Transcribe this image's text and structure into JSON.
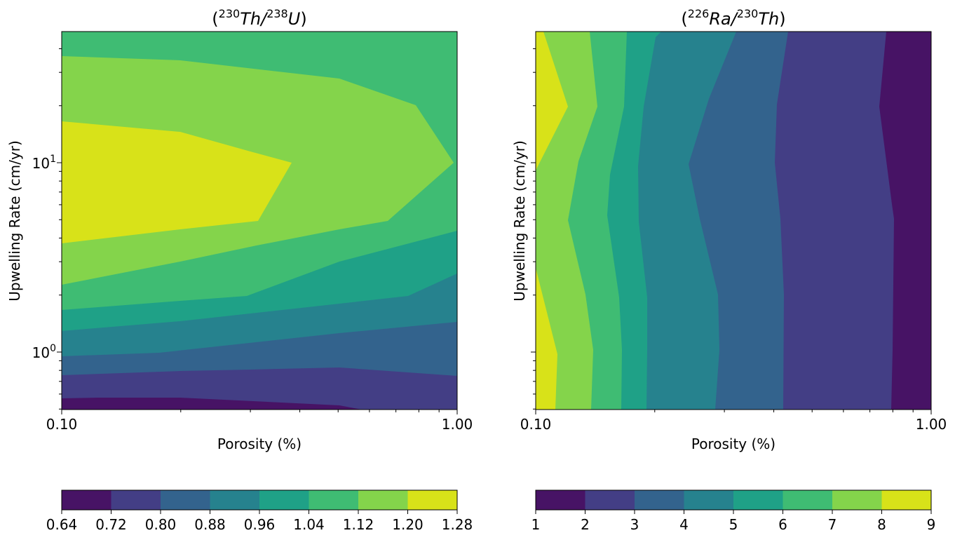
{
  "chart_data": [
    {
      "type": "contour",
      "title": {
        "open": "(",
        "iso1": "230",
        "el1": "Th",
        "slash": "/",
        "iso2": "238",
        "el2": "U",
        "close": ")"
      },
      "xlabel": "Porosity (%)",
      "ylabel": "Upwelling Rate (cm/yr)",
      "xscale": "log",
      "yscale": "log",
      "xlim": [
        0.1,
        1.0
      ],
      "ylim": [
        0.5,
        50
      ],
      "xticks": [
        "0.10",
        "1.00"
      ],
      "yticks": [
        {
          "base": "10",
          "exp": "0"
        },
        {
          "base": "10",
          "exp": "1"
        }
      ],
      "levels": [
        "0.64",
        "0.72",
        "0.80",
        "0.88",
        "0.96",
        "1.04",
        "1.12",
        "1.20",
        "1.28"
      ],
      "colorbar": "bottom",
      "pattern": "maximum 1.20-1.28 at low porosity and ~5-15 cm/yr upwelling; values fall to 0.64-0.72 at lowest upwelling rates"
    },
    {
      "type": "contour",
      "title": {
        "open": "(",
        "iso1": "226",
        "el1": "Ra",
        "slash": "/",
        "iso2": "230",
        "el2": "Th",
        "close": ")"
      },
      "xlabel": "Porosity (%)",
      "ylabel": "Upwelling Rate (cm/yr)",
      "xscale": "log",
      "yscale": "log",
      "xlim": [
        0.1,
        1.0
      ],
      "ylim": [
        0.5,
        50
      ],
      "xticks": [
        "0.10",
        "1.00"
      ],
      "yticks": [],
      "levels": [
        "1",
        "2",
        "3",
        "4",
        "5",
        "6",
        "7",
        "8",
        "9"
      ],
      "colorbar": "bottom",
      "pattern": "values decrease with porosity from 8-9 at 0.1% to 1-2 near 1%, nearly independent of upwelling rate"
    }
  ],
  "colors": [
    "#471365",
    "#433e85",
    "#33638d",
    "#26828e",
    "#1fa187",
    "#3fbc73",
    "#84d44b",
    "#d8e219"
  ]
}
